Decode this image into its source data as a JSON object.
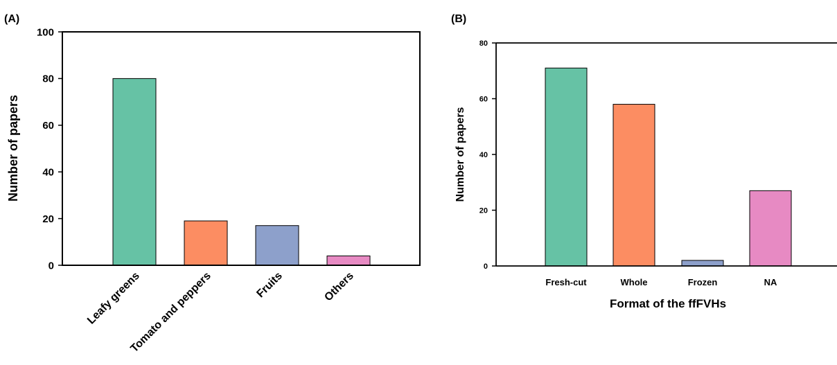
{
  "chart_data": [
    {
      "panel_label": "(A)",
      "type": "bar",
      "categories": [
        "Leafy greens",
        "Tomato and peppers",
        "Fruits",
        "Others"
      ],
      "values": [
        80,
        19,
        17,
        4
      ],
      "colors": [
        "#66c2a5",
        "#fc8d62",
        "#8da0cb",
        "#e78ac3"
      ],
      "xlabel": "",
      "ylabel": "Number of papers",
      "ylim": [
        0,
        100
      ],
      "yticks": [
        "0",
        "20",
        "40",
        "60",
        "80",
        "100"
      ],
      "grid": false,
      "x_tick_rotation": "-45 degrees"
    },
    {
      "panel_label": "(B)",
      "type": "bar",
      "categories": [
        "Fresh-cut",
        "Whole",
        "Frozen",
        "NA"
      ],
      "values": [
        71,
        58,
        2,
        27
      ],
      "colors": [
        "#66c2a5",
        "#fc8d62",
        "#8da0cb",
        "#e78ac3"
      ],
      "xlabel": "Format of the ffFVHs",
      "ylabel": "Number of papers",
      "ylim": [
        0,
        80
      ],
      "yticks": [
        "0",
        "20",
        "40",
        "60",
        "80"
      ],
      "grid": false
    }
  ]
}
